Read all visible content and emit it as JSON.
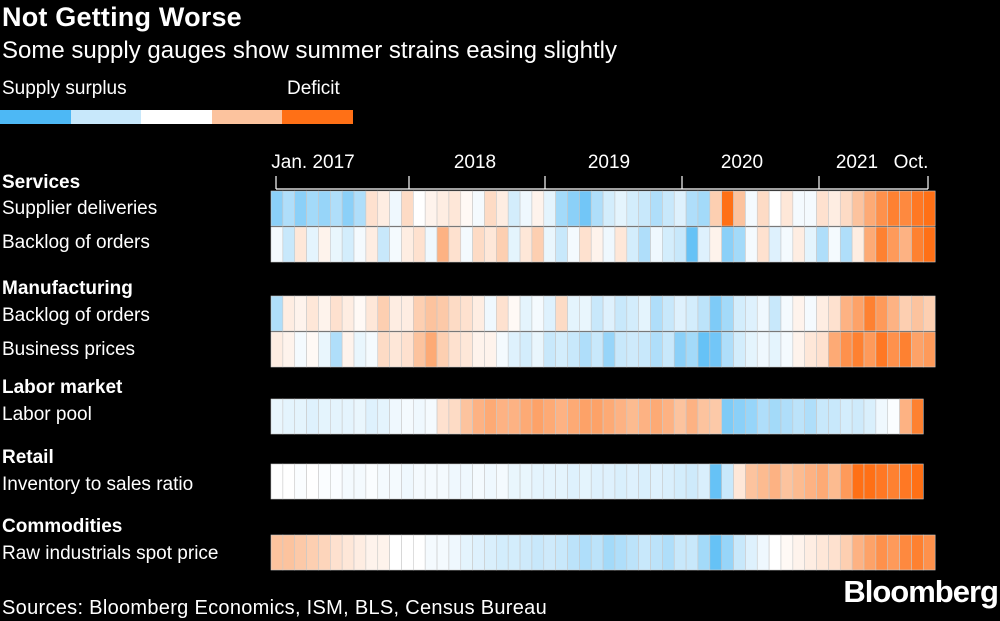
{
  "title": "Not Getting Worse",
  "subtitle": "Some supply gauges show summer strains easing slightly",
  "legend": {
    "low_label": "Supply surplus",
    "high_label": "Deficit",
    "colors": [
      "#4db8f5",
      "#c8e8fb",
      "#ffffff",
      "#fcc39e",
      "#ff7016"
    ]
  },
  "source": "Sources: Bloomberg Economics, ISM, BLS, Census Bureau",
  "logo": "Bloomberg",
  "chart_data": {
    "type": "heatmap",
    "color_scale": [
      "#4db8f5",
      "#c8e8fb",
      "#ffffff",
      "#fcc39e",
      "#ff7016"
    ],
    "value_range": [
      -2,
      2
    ],
    "x_period": "monthly",
    "x_tick_labels": [
      "Jan. 2017",
      "2018",
      "2019",
      "2020",
      "2021",
      "Oct."
    ],
    "groups": [
      {
        "name": "Services",
        "rows": [
          {
            "label": "Supplier deliveries",
            "values": [
              -1.5,
              -1.2,
              -1.5,
              -1.3,
              -1.4,
              -1.2,
              -1.5,
              -1.2,
              0.5,
              0.3,
              -0.3,
              0.6,
              0,
              0.2,
              0.3,
              0.4,
              0.1,
              -0.2,
              0.6,
              0.3,
              -0.8,
              -0.3,
              0.2,
              -0.5,
              -1.3,
              -1.5,
              -1.7,
              -1.2,
              -0.8,
              -0.5,
              -0.8,
              -1.0,
              -1.2,
              -1.0,
              -0.6,
              -1.2,
              -1.3,
              0.8,
              2.0,
              1.0,
              -0.2,
              0.6,
              0,
              0.4,
              -0.2,
              -0.2,
              0.5,
              0.3,
              0.6,
              1.0,
              1.3,
              1.6,
              1.8,
              1.7,
              1.9,
              2.0
            ]
          },
          {
            "label": "Backlog of orders",
            "values": [
              -0.2,
              -1.0,
              0.4,
              -0.5,
              0.2,
              -0.4,
              -0.8,
              -0.2,
              0.3,
              -1.0,
              -0.2,
              0.3,
              0.5,
              -0.3,
              1.2,
              0.5,
              -0.2,
              0.6,
              0.4,
              0.8,
              -0.5,
              0.4,
              0.8,
              -0.4,
              -1.0,
              -0.2,
              0.5,
              0.2,
              -0.3,
              0.4,
              -0.8,
              -1.2,
              -0.3,
              -0.8,
              -1.0,
              -1.8,
              -0.6,
              0.2,
              -1.5,
              -1.3,
              -0.2,
              0.5,
              -0.6,
              -0.2,
              0.3,
              -0.5,
              -1.2,
              -0.2,
              -1.2,
              0.3,
              1.3,
              1.8,
              1.5,
              1.2,
              1.8,
              2.0
            ]
          }
        ]
      },
      {
        "name": "Manufacturing",
        "rows": [
          {
            "label": "Backlog of orders",
            "values": [
              -1.2,
              0.3,
              0.2,
              0.4,
              0.2,
              0.5,
              0.3,
              0.1,
              0.4,
              0.8,
              0.3,
              0.3,
              0.8,
              1.0,
              0.9,
              0.6,
              0.5,
              0.3,
              -0.3,
              0.5,
              0.1,
              -0.5,
              -0.2,
              -0.6,
              0.6,
              -0.5,
              -0.4,
              -1.0,
              -0.6,
              -1.0,
              -0.8,
              -0.5,
              -1.2,
              -1.0,
              -0.6,
              -0.8,
              -1.1,
              -1.6,
              -1.3,
              -0.8,
              -0.6,
              -0.3,
              -1.0,
              -0.2,
              0.2,
              -0.2,
              0.3,
              0.5,
              1.2,
              1.4,
              1.8,
              1.5,
              1.2,
              0.8,
              1.0,
              0.8
            ]
          },
          {
            "label": "Business prices",
            "values": [
              0.3,
              0.2,
              -0.2,
              0.1,
              -0.4,
              -1.2,
              0.2,
              -0.4,
              -0.2,
              0.6,
              0.4,
              0.5,
              1.0,
              1.3,
              0.8,
              0.5,
              0.4,
              0.2,
              0.2,
              -0.2,
              -0.6,
              -0.8,
              -0.4,
              -1.0,
              -0.8,
              -1.0,
              -1.2,
              -1.0,
              -1.4,
              -1.0,
              -0.9,
              -1.0,
              -1.2,
              -1.0,
              -1.5,
              -1.3,
              -1.8,
              -1.7,
              -1.2,
              -0.8,
              -0.5,
              -0.3,
              -0.5,
              -0.2,
              0.2,
              0.4,
              0.5,
              1.3,
              1.6,
              1.8,
              1.5,
              1.9,
              1.6,
              1.8,
              1.4,
              1.5
            ]
          }
        ]
      },
      {
        "name": "Labor market",
        "rows": [
          {
            "label": "Labor pool",
            "values": [
              -0.4,
              -0.5,
              -0.5,
              -0.6,
              -0.5,
              -0.5,
              -0.5,
              -0.4,
              -0.6,
              -0.5,
              -0.3,
              -0.2,
              -0.3,
              -0.2,
              0.5,
              0.6,
              1.0,
              1.2,
              1.3,
              1.2,
              1.2,
              1.3,
              1.4,
              1.3,
              1.2,
              1.3,
              1.4,
              1.4,
              1.3,
              1.2,
              1.1,
              1.2,
              1.3,
              1.2,
              1.0,
              1.2,
              1.0,
              0.9,
              -1.6,
              -1.5,
              -1.4,
              -1.2,
              -1.3,
              -1.2,
              -1.1,
              -1.2,
              -1.0,
              -1.0,
              -0.8,
              -0.9,
              -0.7,
              -0.3,
              -0.1,
              1.2,
              1.8
            ]
          }
        ]
      },
      {
        "name": "Retail",
        "rows": [
          {
            "label": "Inventory to sales ratio",
            "values": [
              0,
              0,
              -0.1,
              0,
              -0.1,
              -0.1,
              -0.2,
              -0.2,
              -0.1,
              -0.2,
              -0.2,
              -0.3,
              -0.2,
              -0.2,
              -0.2,
              -0.3,
              -0.3,
              -0.2,
              -0.3,
              -0.2,
              -0.4,
              -0.4,
              -0.5,
              -0.5,
              -0.5,
              -0.6,
              -0.5,
              -0.6,
              -0.6,
              -0.7,
              -0.6,
              -0.7,
              -0.6,
              -0.7,
              -0.8,
              -0.9,
              -0.7,
              -1.8,
              -1.0,
              0.4,
              1.0,
              1.1,
              1.2,
              1.0,
              1.1,
              1.2,
              1.3,
              1.1,
              1.5,
              2.0,
              2.0,
              1.9,
              1.8,
              1.9,
              2.0
            ]
          }
        ]
      },
      {
        "name": "Commodities",
        "rows": [
          {
            "label": "Raw industrials spot price",
            "values": [
              1.0,
              1.0,
              0.9,
              0.8,
              0.7,
              0.5,
              0.4,
              0.3,
              0.2,
              0.2,
              0.0,
              0.0,
              0.0,
              -0.2,
              -0.2,
              -0.3,
              -0.5,
              -0.6,
              -0.7,
              -0.8,
              -0.8,
              -0.9,
              -1.0,
              -0.9,
              -1.0,
              -1.1,
              -1.2,
              -1.1,
              -1.3,
              -1.2,
              -1.1,
              -1.0,
              -1.1,
              -1.2,
              -1.0,
              -1.0,
              -1.3,
              -1.8,
              -1.4,
              -1.0,
              -0.6,
              -0.3,
              0.0,
              0.1,
              0.2,
              0.3,
              0.4,
              0.5,
              0.8,
              1.2,
              1.4,
              1.6,
              1.5,
              1.7,
              1.8,
              1.6
            ]
          }
        ]
      }
    ]
  }
}
